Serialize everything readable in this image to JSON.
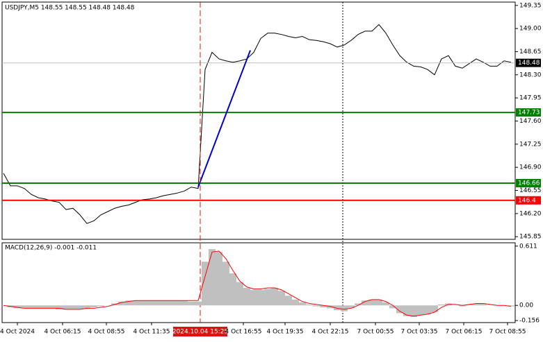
{
  "chart_data": [
    {
      "type": "line",
      "title": "USDJPY,M5  148.55 148.55 148.48 148.48",
      "color": "#000000",
      "values": [
        146.81,
        146.62,
        146.62,
        146.58,
        146.49,
        146.44,
        146.42,
        146.39,
        146.37,
        146.26,
        146.28,
        146.18,
        146.05,
        146.09,
        146.18,
        146.23,
        146.28,
        146.31,
        146.33,
        146.37,
        146.41,
        146.42,
        146.44,
        146.47,
        146.49,
        146.51,
        146.54,
        146.6,
        146.58,
        148.38,
        148.64,
        148.54,
        148.51,
        148.49,
        148.51,
        148.54,
        148.64,
        148.85,
        148.93,
        148.93,
        148.91,
        148.88,
        148.86,
        148.88,
        148.83,
        148.82,
        148.8,
        148.77,
        148.72,
        148.75,
        148.82,
        148.91,
        148.96,
        148.96,
        149.06,
        148.93,
        148.75,
        148.59,
        148.49,
        148.43,
        148.42,
        148.38,
        148.3,
        148.54,
        148.59,
        148.43,
        148.4,
        148.47,
        148.54,
        148.49,
        148.43,
        148.43,
        148.51,
        148.49
      ],
      "xlim": [
        -0.2,
        73.6
      ],
      "ylim": [
        145.81,
        149.4
      ],
      "yticks": [
        149.35,
        {
          "value": 149.0,
          "label": "149.00"
        },
        148.65,
        {
          "value": 148.3,
          "label": "148.30"
        },
        147.95,
        {
          "value": 147.6,
          "label": "147.60"
        },
        147.25,
        {
          "value": 146.9,
          "label": "146.90"
        },
        146.55,
        {
          "value": 146.2,
          "label": "146.20"
        },
        145.85
      ],
      "hlines": [
        {
          "value": 147.73,
          "color": "#008000"
        },
        {
          "value": 146.66,
          "color": "#008000"
        },
        {
          "value": 146.4,
          "color": "#ff0000"
        },
        {
          "value": 148.48,
          "color": "#000000",
          "line_color": "#c0c0c0"
        }
      ],
      "trendline": {
        "x": [
          28,
          35.5
        ],
        "y": [
          146.6,
          148.67
        ],
        "color": "#0000cc"
      },
      "vlines": [
        {
          "x": 28.3,
          "color": "#e01010",
          "style": "dashed",
          "label": "2024.10.04 15:25"
        },
        {
          "x": 48.8,
          "color": "#000000",
          "style": "dotted"
        }
      ]
    },
    {
      "type": "macd",
      "title": "MACD(12,26,9) -0.001 -0.011",
      "series": [
        {
          "name": "MACD",
          "color": "#c0c0c0",
          "values": [
            0.0,
            -0.02,
            -0.03,
            -0.03,
            -0.03,
            -0.03,
            -0.03,
            -0.03,
            -0.04,
            -0.04,
            -0.04,
            -0.04,
            -0.03,
            -0.02,
            -0.01,
            0.0,
            0.02,
            0.04,
            0.05,
            0.05,
            0.05,
            0.05,
            0.05,
            0.05,
            0.05,
            0.05,
            0.05,
            0.04,
            0.04,
            0.45,
            0.58,
            0.55,
            0.45,
            0.33,
            0.24,
            0.18,
            0.16,
            0.16,
            0.17,
            0.18,
            0.15,
            0.1,
            0.06,
            0.03,
            0.01,
            -0.01,
            -0.02,
            -0.03,
            -0.05,
            -0.06,
            -0.03,
            0.02,
            0.05,
            0.06,
            0.06,
            0.03,
            -0.03,
            -0.08,
            -0.11,
            -0.12,
            -0.1,
            -0.09,
            -0.07,
            0.01,
            0.02,
            0.0,
            -0.01,
            0.01,
            0.02,
            0.02,
            0.0,
            0.0,
            0.0,
            -0.01
          ]
        },
        {
          "name": "Signal",
          "color": "#ff0000",
          "values": [
            0.0,
            -0.01,
            -0.02,
            -0.03,
            -0.03,
            -0.03,
            -0.03,
            -0.03,
            -0.03,
            -0.04,
            -0.04,
            -0.04,
            -0.03,
            -0.03,
            -0.02,
            -0.01,
            0.01,
            0.03,
            0.04,
            0.05,
            0.05,
            0.05,
            0.05,
            0.05,
            0.05,
            0.05,
            0.05,
            0.05,
            0.05,
            0.3,
            0.55,
            0.56,
            0.48,
            0.36,
            0.25,
            0.19,
            0.17,
            0.17,
            0.18,
            0.18,
            0.16,
            0.12,
            0.08,
            0.04,
            0.02,
            0.01,
            0.0,
            -0.01,
            -0.03,
            -0.04,
            -0.03,
            0.0,
            0.04,
            0.06,
            0.06,
            0.04,
            0.0,
            -0.06,
            -0.1,
            -0.11,
            -0.1,
            -0.09,
            -0.07,
            -0.02,
            0.01,
            0.01,
            0.0,
            0.01,
            0.02,
            0.02,
            0.01,
            0.0,
            0.0,
            -0.01
          ]
        }
      ],
      "xlim": [
        -0.2,
        73.6
      ],
      "ylim": [
        -0.177,
        0.645
      ],
      "yticks": [
        0.611,
        {
          "value": 0,
          "label": "0.00"
        },
        -0.156
      ],
      "xticks": [
        {
          "value": 2,
          "label": "4 Oct 2024"
        },
        {
          "value": 8.5,
          "label": "4 Oct 06:15"
        },
        {
          "value": 14.8,
          "label": "4 Oct 08:55"
        },
        {
          "value": 21.3,
          "label": "4 Oct 11:35"
        },
        {
          "value": 34.5,
          "label": "4 Oct 16:55"
        },
        {
          "value": 40.5,
          "label": "4 Oct 19:35"
        },
        {
          "value": 47,
          "label": "4 Oct 22:15"
        },
        {
          "value": 53.5,
          "label": "7 Oct 00:55"
        },
        {
          "value": 59.8,
          "label": "7 Oct 03:35"
        },
        {
          "value": 66.2,
          "label": "7 Oct 06:15"
        },
        {
          "value": 72.5,
          "label": "7 Oct 08:55"
        }
      ]
    }
  ]
}
